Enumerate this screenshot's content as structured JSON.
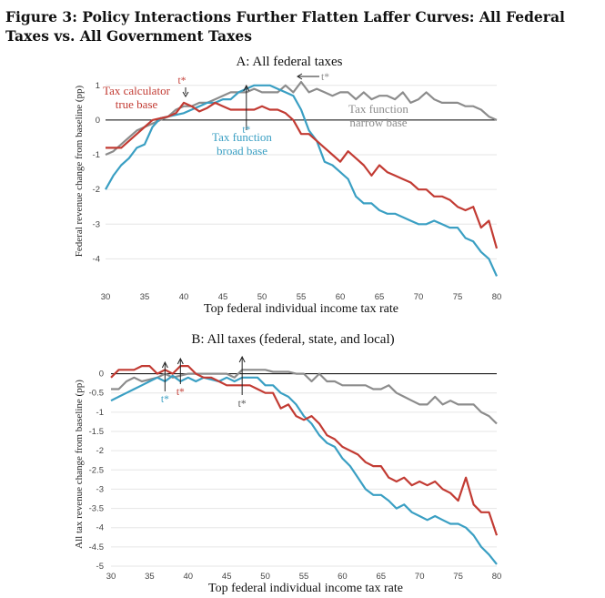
{
  "figure": {
    "title_line1": "Figure 3: Policy Interactions Further Flatten Laffer Curves: All Federal",
    "title_line2": "Taxes vs. All Government Taxes"
  },
  "colors": {
    "red": "#c23b33",
    "blue": "#3a9fc3",
    "gray": "#8c8c8c",
    "axis": "#000000"
  },
  "chart_data": [
    {
      "type": "line",
      "title": "A: All federal taxes",
      "xlabel": "Top federal individual income tax rate",
      "ylabel": "Federal revenue change from baseline (pp)",
      "xlim": [
        30,
        80
      ],
      "ylim": [
        -4.2,
        1.1
      ],
      "xticks": [
        30,
        35,
        40,
        45,
        50,
        55,
        60,
        65,
        70,
        75,
        80
      ],
      "yticks": [
        1,
        0,
        -1,
        -2,
        -3,
        -4
      ],
      "x": [
        30,
        31,
        32,
        33,
        34,
        35,
        36,
        37,
        38,
        39,
        40,
        41,
        42,
        43,
        44,
        45,
        46,
        47,
        48,
        49,
        50,
        51,
        52,
        53,
        54,
        55,
        56,
        57,
        58,
        59,
        60,
        61,
        62,
        63,
        64,
        65,
        66,
        67,
        68,
        69,
        70,
        71,
        72,
        73,
        74,
        75,
        76,
        77,
        78,
        79,
        80
      ],
      "series": [
        {
          "name": "Tax calculator true base",
          "color": "red",
          "values": [
            -0.8,
            -0.8,
            -0.8,
            -0.6,
            -0.4,
            -0.2,
            0.0,
            0.05,
            0.1,
            0.2,
            0.5,
            0.4,
            0.25,
            0.35,
            0.5,
            0.4,
            0.3,
            0.3,
            0.3,
            0.3,
            0.4,
            0.3,
            0.3,
            0.2,
            0.0,
            -0.4,
            -0.4,
            -0.6,
            -0.8,
            -1.0,
            -1.2,
            -0.9,
            -1.1,
            -1.3,
            -1.6,
            -1.3,
            -1.5,
            -1.6,
            -1.7,
            -1.8,
            -2.0,
            -2.0,
            -2.2,
            -2.2,
            -2.3,
            -2.5,
            -2.6,
            -2.5,
            -3.1,
            -2.9,
            -3.7
          ]
        },
        {
          "name": "Tax function broad base",
          "color": "blue",
          "values": [
            -2.0,
            -1.6,
            -1.3,
            -1.1,
            -0.8,
            -0.7,
            -0.2,
            0.05,
            0.1,
            0.15,
            0.2,
            0.3,
            0.4,
            0.5,
            0.5,
            0.6,
            0.6,
            0.8,
            0.9,
            1.0,
            1.0,
            1.0,
            0.9,
            0.8,
            0.7,
            0.3,
            -0.3,
            -0.6,
            -1.2,
            -1.3,
            -1.5,
            -1.7,
            -2.2,
            -2.4,
            -2.4,
            -2.6,
            -2.7,
            -2.7,
            -2.8,
            -2.9,
            -3.0,
            -3.0,
            -2.9,
            -3.0,
            -3.1,
            -3.1,
            -3.4,
            -3.5,
            -3.8,
            -4.0,
            -4.5
          ]
        },
        {
          "name": "Tax function narrow base",
          "color": "gray",
          "values": [
            -1.0,
            -0.9,
            -0.7,
            -0.5,
            -0.3,
            -0.2,
            -0.1,
            0.0,
            0.1,
            0.3,
            0.4,
            0.4,
            0.5,
            0.5,
            0.6,
            0.7,
            0.8,
            0.8,
            0.8,
            0.9,
            0.8,
            0.8,
            0.8,
            1.0,
            0.8,
            1.1,
            0.8,
            0.9,
            0.8,
            0.7,
            0.8,
            0.8,
            0.6,
            0.8,
            0.6,
            0.7,
            0.7,
            0.6,
            0.8,
            0.5,
            0.6,
            0.8,
            0.6,
            0.5,
            0.5,
            0.5,
            0.4,
            0.4,
            0.3,
            0.1,
            0.0
          ]
        }
      ],
      "annotations": {
        "red_label_line1": "Tax calculator",
        "red_label_line2": "true base",
        "blue_label_line1": "Tax function",
        "blue_label_line2": "broad base",
        "gray_label_line1": "Tax function",
        "gray_label_line2": "narrow base",
        "tstar": "t*",
        "red_tstar_x": 40,
        "blue_tstar_x": 48,
        "gray_tstar_x": 55
      }
    },
    {
      "type": "line",
      "title": "B: All taxes (federal, state, and local)",
      "xlabel": "Top federal individual income tax rate",
      "ylabel": "All tax revenue change from baseline (pp)",
      "xlim": [
        30,
        80
      ],
      "ylim": [
        -5.0,
        0.25
      ],
      "xticks": [
        30,
        35,
        40,
        45,
        50,
        55,
        60,
        65,
        70,
        75,
        80
      ],
      "yticks": [
        "0",
        "-0.5",
        "-1",
        "-1.5",
        "-2",
        "-2.5",
        "-3",
        "-3.5",
        "-4",
        "-4.5",
        "-5"
      ],
      "x": [
        30,
        31,
        32,
        33,
        34,
        35,
        36,
        37,
        38,
        39,
        40,
        41,
        42,
        43,
        44,
        45,
        46,
        47,
        48,
        49,
        50,
        51,
        52,
        53,
        54,
        55,
        56,
        57,
        58,
        59,
        60,
        61,
        62,
        63,
        64,
        65,
        66,
        67,
        68,
        69,
        70,
        71,
        72,
        73,
        74,
        75,
        76,
        77,
        78,
        79,
        80
      ],
      "series": [
        {
          "name": "Tax calculator true base",
          "color": "red",
          "values": [
            -0.1,
            0.1,
            0.1,
            0.1,
            0.2,
            0.2,
            0.0,
            0.1,
            0.0,
            0.2,
            0.2,
            0.0,
            -0.1,
            -0.1,
            -0.2,
            -0.3,
            -0.3,
            -0.3,
            -0.3,
            -0.4,
            -0.5,
            -0.5,
            -0.9,
            -0.8,
            -1.1,
            -1.2,
            -1.1,
            -1.3,
            -1.6,
            -1.7,
            -1.9,
            -2.0,
            -2.1,
            -2.3,
            -2.4,
            -2.4,
            -2.7,
            -2.8,
            -2.7,
            -2.9,
            -2.8,
            -2.9,
            -2.8,
            -3.0,
            -3.1,
            -3.3,
            -2.7,
            -3.4,
            -3.6,
            -3.6,
            -4.2
          ]
        },
        {
          "name": "Tax function broad base",
          "color": "blue",
          "values": [
            -0.7,
            -0.6,
            -0.5,
            -0.4,
            -0.3,
            -0.2,
            -0.1,
            -0.2,
            -0.05,
            -0.2,
            -0.1,
            -0.2,
            -0.1,
            -0.15,
            -0.2,
            -0.1,
            -0.2,
            -0.1,
            -0.1,
            -0.1,
            -0.3,
            -0.3,
            -0.5,
            -0.6,
            -0.8,
            -1.1,
            -1.3,
            -1.6,
            -1.8,
            -1.9,
            -2.2,
            -2.4,
            -2.7,
            -3.0,
            -3.15,
            -3.15,
            -3.3,
            -3.5,
            -3.4,
            -3.6,
            -3.7,
            -3.8,
            -3.7,
            -3.8,
            -3.9,
            -3.9,
            -4.0,
            -4.2,
            -4.5,
            -4.7,
            -4.95
          ]
        },
        {
          "name": "Tax function narrow base",
          "color": "gray",
          "values": [
            -0.4,
            -0.4,
            -0.2,
            -0.1,
            -0.2,
            -0.15,
            -0.1,
            0.0,
            -0.1,
            -0.05,
            0.0,
            0.0,
            0.0,
            0.0,
            0.0,
            0.0,
            -0.1,
            0.1,
            0.1,
            0.1,
            0.1,
            0.05,
            0.05,
            0.05,
            0.0,
            0.0,
            -0.2,
            0.0,
            -0.2,
            -0.2,
            -0.3,
            -0.3,
            -0.3,
            -0.3,
            -0.4,
            -0.4,
            -0.3,
            -0.5,
            -0.6,
            -0.7,
            -0.8,
            -0.8,
            -0.6,
            -0.8,
            -0.7,
            -0.8,
            -0.8,
            -0.8,
            -1.0,
            -1.1,
            -1.3
          ]
        }
      ],
      "annotations": {
        "tstar": "t*",
        "blue_tstar_x": 37,
        "red_tstar_x": 39,
        "gray_tstar_x": 47
      }
    }
  ]
}
